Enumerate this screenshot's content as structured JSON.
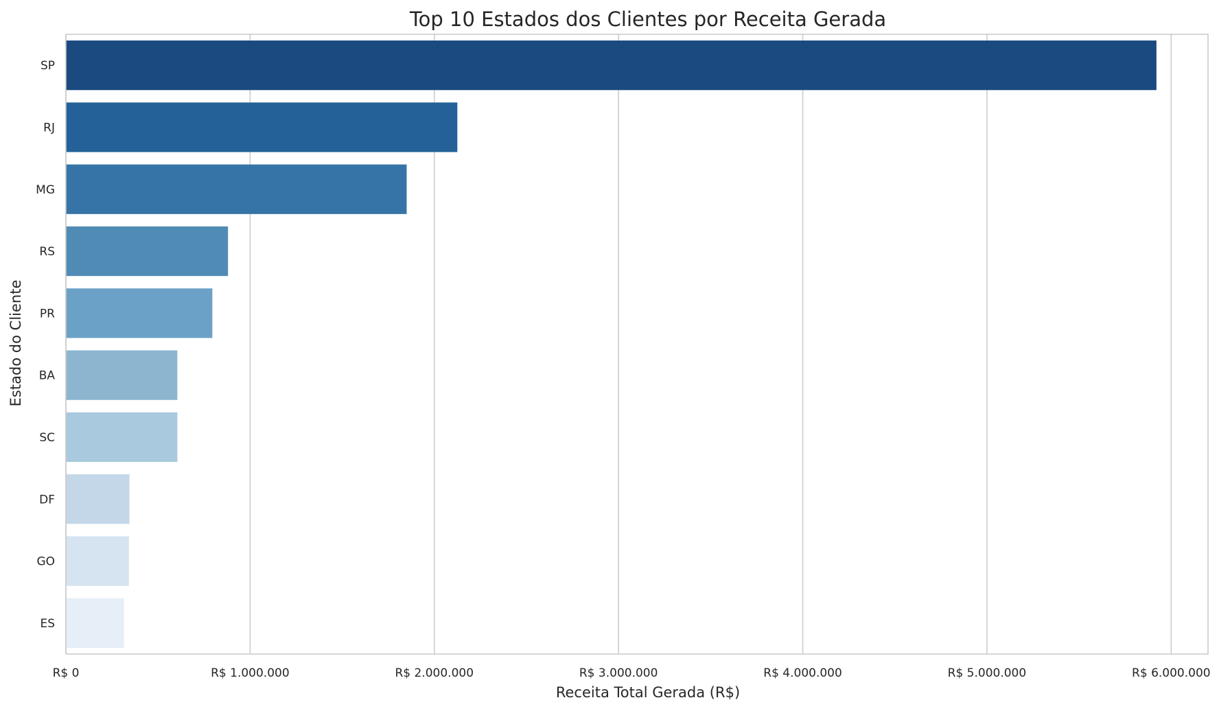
{
  "chart_data": {
    "type": "bar",
    "orientation": "horizontal",
    "title": "Top 10 Estados dos Clientes por Receita Gerada",
    "xlabel": "Receita Total Gerada (R$)",
    "ylabel": "Estado do Cliente",
    "categories": [
      "SP",
      "RJ",
      "MG",
      "RS",
      "PR",
      "BA",
      "SC",
      "DF",
      "GO",
      "ES"
    ],
    "values": [
      5920000,
      2125000,
      1850000,
      880000,
      795000,
      605000,
      605000,
      345000,
      342000,
      315000
    ],
    "xlim": [
      0,
      6200000
    ],
    "x_ticks": [
      0,
      1000000,
      2000000,
      3000000,
      4000000,
      5000000,
      6000000
    ],
    "x_tick_labels": [
      "R$ 0",
      "R$ 1.000.000",
      "R$ 2.000.000",
      "R$ 3.000.000",
      "R$ 4.000.000",
      "R$ 5.000.000",
      "R$ 6.000.000"
    ],
    "grid": "vertical",
    "bar_colors": [
      "#1a4a80",
      "#246198",
      "#3674a8",
      "#508bb6",
      "#6ba1c6",
      "#8cb6d0",
      "#a8c9de",
      "#c3d7e8",
      "#d6e3f0",
      "#e6eef8"
    ],
    "grid_color": "#cccccc",
    "spine_color": "#cccccc"
  }
}
